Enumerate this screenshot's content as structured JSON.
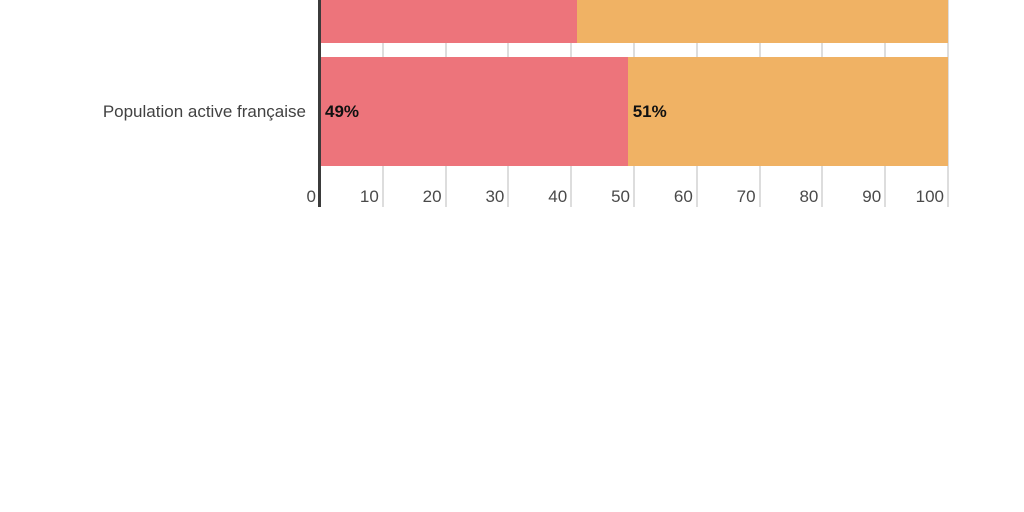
{
  "chart_data": {
    "type": "bar",
    "orientation": "horizontal",
    "stacked": true,
    "title": "",
    "xlabel": "",
    "ylabel": "",
    "xlim": [
      0,
      100
    ],
    "grid": true,
    "x_ticks": [
      "0",
      "10",
      "20",
      "30",
      "40",
      "50",
      "60",
      "70",
      "80",
      "90",
      "100"
    ],
    "categories": [
      "",
      "Population active française"
    ],
    "series": [
      {
        "name": "segment-red",
        "color": "#ED747B",
        "values": [
          41,
          49
        ]
      },
      {
        "name": "segment-orange",
        "color": "#F0B264",
        "values": [
          59,
          51
        ]
      }
    ],
    "data_labels": [
      [
        "",
        ""
      ],
      [
        "49%",
        "51%"
      ]
    ]
  },
  "styles": {
    "red": "#ED747B",
    "orange": "#F0B264",
    "gridline": "#DDDDDD",
    "axis_line": "#3B3B3B",
    "category_label_color": "#424242",
    "tick_label_color": "#4A4A4A",
    "value_label_color": "#111111",
    "background": "#FFFFFF"
  }
}
